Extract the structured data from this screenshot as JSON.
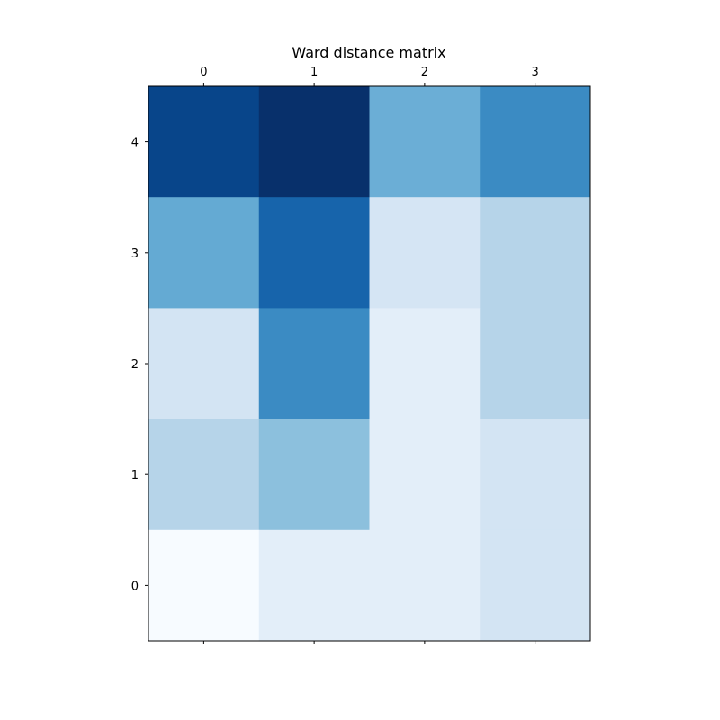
{
  "chart_data": {
    "type": "heatmap",
    "title": "Ward distance matrix",
    "colormap": "Blues",
    "x_ticks": [
      "0",
      "1",
      "2",
      "3"
    ],
    "y_ticks": [
      "0",
      "1",
      "2",
      "3",
      "4"
    ],
    "x_tick_position": "top-and-bottom",
    "y_origin": "bottom",
    "grid": false,
    "colorbar": false,
    "rows": [
      {
        "y": "4",
        "cells": [
          0.92,
          1.0,
          0.5,
          0.65
        ]
      },
      {
        "y": "3",
        "cells": [
          0.52,
          0.8,
          0.17,
          0.3
        ]
      },
      {
        "y": "2",
        "cells": [
          0.18,
          0.65,
          0.1,
          0.3
        ]
      },
      {
        "y": "1",
        "cells": [
          0.3,
          0.42,
          0.1,
          0.18
        ]
      },
      {
        "y": "0",
        "cells": [
          0.0,
          0.1,
          0.1,
          0.18
        ]
      }
    ]
  }
}
